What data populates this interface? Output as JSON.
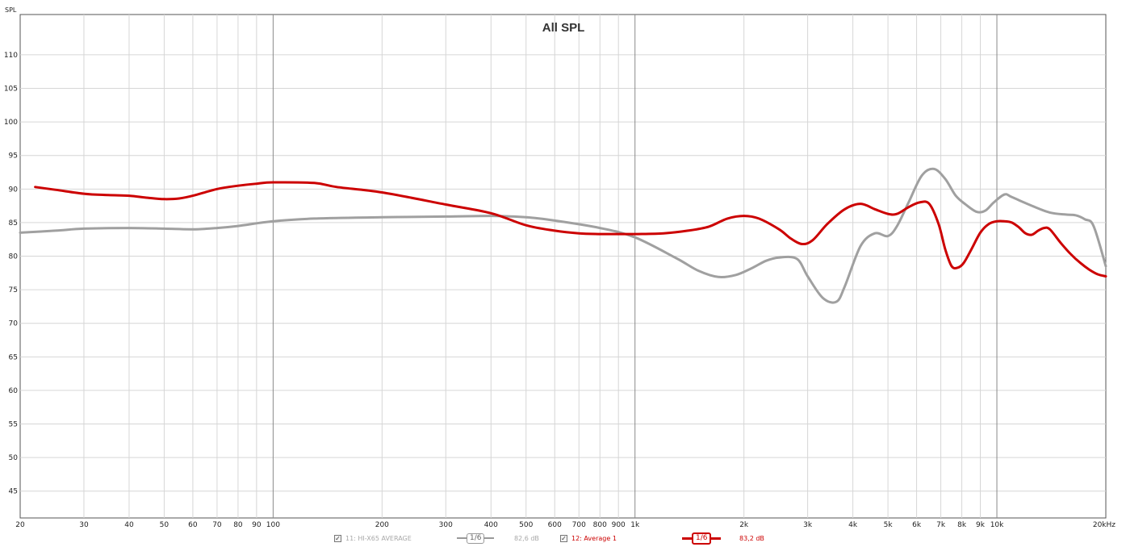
{
  "chart_data": {
    "type": "line",
    "title": "All SPL",
    "ylabel": "SPL",
    "xunit": "kHz",
    "xscale": "log",
    "xlim": [
      20,
      20000
    ],
    "ylim": [
      41,
      116
    ],
    "grid": true,
    "y_ticks": [
      {
        "value": 110,
        "label": "110"
      },
      {
        "value": 105,
        "label": "105"
      },
      {
        "value": 100,
        "label": "100"
      },
      {
        "value": 95,
        "label": "95"
      },
      {
        "value": 90,
        "label": "90"
      },
      {
        "value": 85,
        "label": "85"
      },
      {
        "value": 80,
        "label": "80"
      },
      {
        "value": 75,
        "label": "75"
      },
      {
        "value": 70,
        "label": "70"
      },
      {
        "value": 65,
        "label": "65"
      },
      {
        "value": 60,
        "label": "60"
      },
      {
        "value": 55,
        "label": "55"
      },
      {
        "value": 50,
        "label": "50"
      },
      {
        "value": 45,
        "label": "45"
      }
    ],
    "x_ticks": [
      {
        "value": 20,
        "label": "20"
      },
      {
        "value": 30,
        "label": "30"
      },
      {
        "value": 40,
        "label": "40"
      },
      {
        "value": 50,
        "label": "50"
      },
      {
        "value": 60,
        "label": "60"
      },
      {
        "value": 70,
        "label": "70"
      },
      {
        "value": 80,
        "label": "80"
      },
      {
        "value": 90,
        "label": "90"
      },
      {
        "value": 100,
        "label": "100"
      },
      {
        "value": 200,
        "label": "200"
      },
      {
        "value": 300,
        "label": "300"
      },
      {
        "value": 400,
        "label": "400"
      },
      {
        "value": 500,
        "label": "500"
      },
      {
        "value": 600,
        "label": "600"
      },
      {
        "value": 700,
        "label": "700"
      },
      {
        "value": 800,
        "label": "800"
      },
      {
        "value": 900,
        "label": "900"
      },
      {
        "value": 1000,
        "label": "1k"
      },
      {
        "value": 2000,
        "label": "2k"
      },
      {
        "value": 3000,
        "label": "3k"
      },
      {
        "value": 4000,
        "label": "4k"
      },
      {
        "value": 5000,
        "label": "5k"
      },
      {
        "value": 6000,
        "label": "6k"
      },
      {
        "value": 7000,
        "label": "7k"
      },
      {
        "value": 8000,
        "label": "8k"
      },
      {
        "value": 9000,
        "label": "9k"
      },
      {
        "value": 10000,
        "label": "10k"
      },
      {
        "value": 20000,
        "label": "20kHz"
      }
    ],
    "x_major": [
      100,
      1000,
      10000
    ],
    "series": [
      {
        "name": "11: HI-X65 AVERAGE",
        "color": "#a0a0a0",
        "smoothing": "1/6",
        "level": "82,6 dB",
        "x": [
          20,
          25,
          30,
          40,
          50,
          60,
          70,
          80,
          100,
          130,
          200,
          300,
          400,
          500,
          600,
          800,
          1000,
          1300,
          1500,
          1700,
          1900,
          2100,
          2300,
          2500,
          2800,
          3000,
          3300,
          3600,
          3800,
          4200,
          4600,
          5000,
          5300,
          5700,
          6200,
          6700,
          7200,
          7700,
          8200,
          8800,
          9300,
          9800,
          10500,
          11000,
          12500,
          14000,
          15500,
          16500,
          17500,
          18500,
          20000
        ],
        "y": [
          83.5,
          83.8,
          84.1,
          84.2,
          84.1,
          84.0,
          84.2,
          84.5,
          85.2,
          85.6,
          85.8,
          85.9,
          86.0,
          85.8,
          85.3,
          84.2,
          82.8,
          79.7,
          77.8,
          76.9,
          77.2,
          78.2,
          79.3,
          79.8,
          79.6,
          77.0,
          73.8,
          73.2,
          75.5,
          81.5,
          83.4,
          83.0,
          84.5,
          88.0,
          92.0,
          93.0,
          91.5,
          89.0,
          87.7,
          86.6,
          86.8,
          88.0,
          89.2,
          88.8,
          87.5,
          86.5,
          86.2,
          86.1,
          85.5,
          84.5,
          78.5
        ]
      },
      {
        "name": "12: Average 1",
        "color": "#cc0000",
        "smoothing": "1/6",
        "level": "83,2 dB",
        "x": [
          22,
          25,
          30,
          35,
          40,
          45,
          50,
          55,
          60,
          70,
          80,
          90,
          100,
          130,
          150,
          200,
          300,
          400,
          500,
          600,
          700,
          800,
          900,
          1000,
          1200,
          1400,
          1600,
          1800,
          2000,
          2200,
          2500,
          2700,
          2900,
          3100,
          3400,
          3800,
          4200,
          4600,
          5000,
          5300,
          5700,
          6100,
          6500,
          6900,
          7200,
          7500,
          7800,
          8100,
          8500,
          9000,
          9500,
          10000,
          10500,
          11000,
          11500,
          12000,
          12500,
          13000,
          13500,
          14000,
          15000,
          16000,
          17000,
          18000,
          19000,
          20000
        ],
        "y": [
          90.3,
          89.9,
          89.3,
          89.1,
          89.0,
          88.7,
          88.5,
          88.6,
          89.0,
          90.0,
          90.5,
          90.8,
          91.0,
          90.9,
          90.3,
          89.5,
          87.7,
          86.4,
          84.6,
          83.8,
          83.4,
          83.3,
          83.3,
          83.3,
          83.4,
          83.8,
          84.4,
          85.6,
          86.0,
          85.6,
          84.0,
          82.6,
          81.8,
          82.4,
          84.8,
          87.0,
          87.8,
          87.0,
          86.3,
          86.3,
          87.3,
          88.0,
          87.8,
          84.8,
          81.0,
          78.5,
          78.3,
          79.0,
          81.0,
          83.5,
          84.8,
          85.2,
          85.2,
          85.0,
          84.3,
          83.4,
          83.2,
          83.8,
          84.2,
          84.0,
          82.0,
          80.3,
          79.0,
          78.0,
          77.3,
          77.0
        ]
      }
    ]
  },
  "legend": {
    "items": [
      {
        "checkbox": "✓",
        "label": "11: HI-X65 AVERAGE",
        "smoothing": "1/6",
        "level": "82,6 dB"
      },
      {
        "checkbox": "✓",
        "label": "12: Average 1",
        "smoothing": "1/6",
        "level": "83,2 dB"
      }
    ]
  }
}
